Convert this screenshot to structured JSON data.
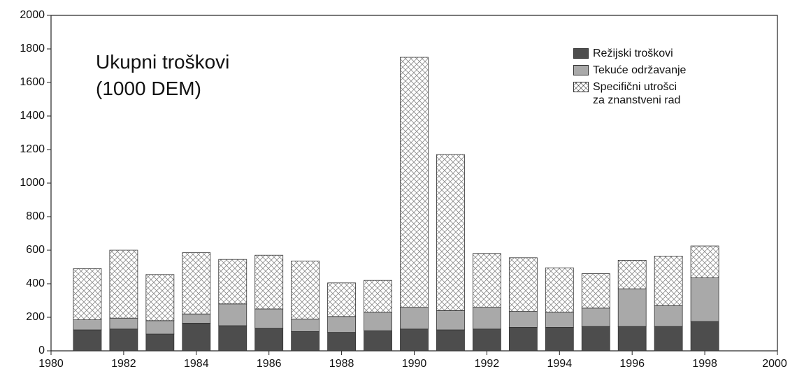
{
  "chart_data": {
    "type": "stacked_bar",
    "title": "Ukupni troškovi\n(1000 DEM)",
    "x": [
      1981,
      1982,
      1983,
      1984,
      1985,
      1986,
      1987,
      1988,
      1989,
      1990,
      1991,
      1992,
      1993,
      1994,
      1995,
      1996,
      1997,
      1998
    ],
    "series": [
      {
        "name": "Režijski troškovi",
        "color": "#4d4d4d",
        "values": [
          125,
          130,
          100,
          165,
          150,
          135,
          115,
          110,
          120,
          130,
          125,
          130,
          140,
          140,
          145,
          145,
          145,
          175
        ]
      },
      {
        "name": "Tekuće održavanje",
        "color": "#a9a9a9",
        "values": [
          60,
          65,
          80,
          55,
          130,
          115,
          75,
          95,
          110,
          130,
          115,
          130,
          95,
          90,
          110,
          225,
          125,
          260
        ]
      },
      {
        "name": "Specifični utrošci\nza znanstveni rad",
        "color": "#8a8a8a",
        "pattern": "crosshatch",
        "values": [
          305,
          405,
          275,
          365,
          265,
          320,
          345,
          200,
          190,
          1490,
          930,
          320,
          320,
          265,
          205,
          170,
          295,
          190
        ]
      }
    ],
    "xlim": [
      1980,
      2000
    ],
    "xticks": [
      1980,
      1982,
      1984,
      1986,
      1988,
      1990,
      1992,
      1994,
      1996,
      1998,
      2000
    ],
    "ylim": [
      0,
      2000
    ],
    "yticks": [
      0,
      200,
      400,
      600,
      800,
      1000,
      1200,
      1400,
      1600,
      1800,
      2000
    ],
    "legend": "upper right"
  }
}
